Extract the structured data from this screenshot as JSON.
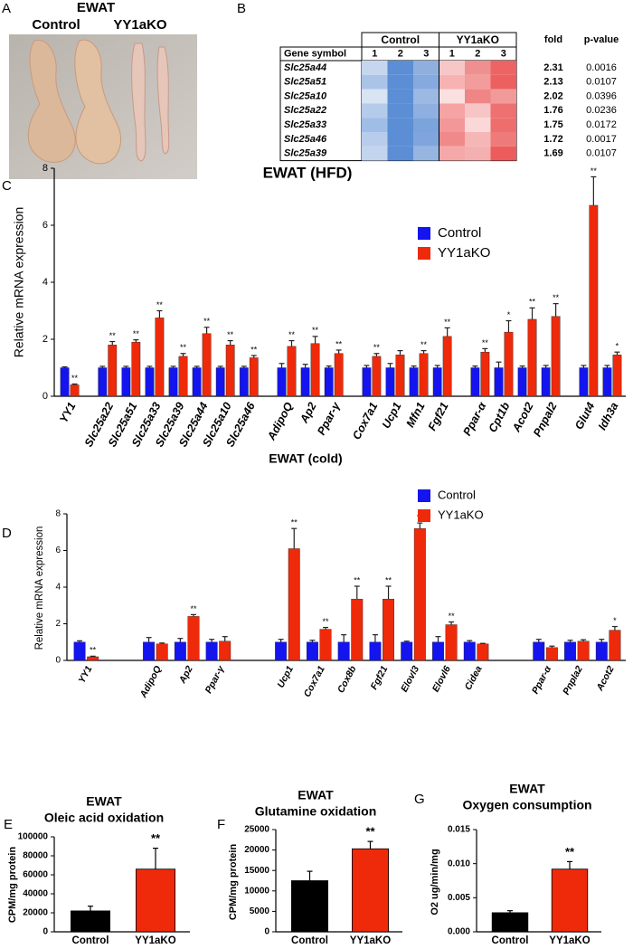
{
  "panels": [
    "A",
    "B",
    "C",
    "D",
    "E",
    "F",
    "G"
  ],
  "photo": {
    "title": "EWAT",
    "labels": [
      "Control",
      "YY1aKO"
    ]
  },
  "table": {
    "groups": [
      "Control",
      "YY1aKO"
    ],
    "columns": [
      "Gene symbol",
      "1",
      "2",
      "3",
      "1",
      "2",
      "3",
      "fold",
      "p-value"
    ],
    "rows": [
      {
        "gene": "Slc25a44",
        "cells": [
          "#c6d6ee",
          "#5b8ed4",
          "#8fb0df",
          "#f7c6c6",
          "#f08f8f",
          "#ee6464"
        ],
        "fold": "2.31",
        "p": "0.0016"
      },
      {
        "gene": "Slc25a51",
        "cells": [
          "#aac4e8",
          "#5b8ed4",
          "#86aade",
          "#f7b2b2",
          "#f29c9c",
          "#ec6060"
        ],
        "fold": "2.13",
        "p": "0.0107"
      },
      {
        "gene": "Slc25a10",
        "cells": [
          "#d8e3f3",
          "#5b8ed4",
          "#9cb9e3",
          "#fbe0e0",
          "#ef8585",
          "#f29a9a"
        ],
        "fold": "2.02",
        "p": "0.0396"
      },
      {
        "gene": "Slc25a22",
        "cells": [
          "#b4cbea",
          "#5b8ed4",
          "#8eafe0",
          "#f5a3a3",
          "#f7c5c5",
          "#ee7070"
        ],
        "fold": "1.76",
        "p": "0.0236"
      },
      {
        "gene": "Slc25a33",
        "cells": [
          "#9fbde6",
          "#5b8ed4",
          "#7ba3dc",
          "#f29898",
          "#fad8d8",
          "#ee6e6e"
        ],
        "fold": "1.75",
        "p": "0.0172"
      },
      {
        "gene": "Slc25a46",
        "cells": [
          "#b8cdec",
          "#5b8ed4",
          "#7fa5dc",
          "#f08a8a",
          "#f5b6b6",
          "#ef7a7a"
        ],
        "fold": "1.72",
        "p": "0.0017"
      },
      {
        "gene": "Slc25a39",
        "cells": [
          "#c3d4ee",
          "#5b8ed4",
          "#97b5e1",
          "#f5a8a8",
          "#f4b0b0",
          "#ec5c5c"
        ],
        "fold": "1.69",
        "p": "0.0107"
      }
    ]
  },
  "chart_data": [
    {
      "type": "bar",
      "title": "EWAT (HFD)",
      "ylabel": "Relative mRNA expression",
      "legend": "upper right",
      "categories": [
        "YY1",
        null,
        "Slc25a22",
        "Slc25a51",
        "Slc25a33",
        "Slc25a39",
        "Slc25a44",
        "Slc25a10",
        "Slc25a46",
        null,
        "AdipoQ",
        "Ap2",
        "Ppar-γ",
        null,
        "Cox7a1",
        "Ucp1",
        "Mfn1",
        "Fgf21",
        null,
        "Ppar-α",
        "Cpt1b",
        "Acot2",
        "Pnpal2",
        null,
        "Glut4",
        "Idh3a"
      ],
      "ylim": [
        0,
        8
      ],
      "yticks": [
        0,
        2,
        4,
        6,
        8
      ],
      "series": [
        {
          "name": "Control",
          "color": "#1414ee",
          "values": [
            1,
            null,
            1,
            1,
            1,
            1,
            1,
            1,
            1,
            null,
            1,
            1,
            1,
            null,
            1,
            1,
            1,
            1,
            null,
            1,
            1,
            1,
            1,
            null,
            1,
            1
          ],
          "errors": [
            0.03,
            null,
            0.05,
            0.05,
            0.05,
            0.05,
            0.05,
            0.05,
            0.05,
            null,
            0.15,
            0.12,
            0.06,
            null,
            0.08,
            0.15,
            0.06,
            0.08,
            null,
            0.06,
            0.2,
            0.06,
            0.08,
            null,
            0.08,
            0.08
          ]
        },
        {
          "name": "YY1aKO",
          "color": "#ee2a0a",
          "values": [
            0.4,
            null,
            1.8,
            1.9,
            2.75,
            1.4,
            2.2,
            1.8,
            1.35,
            null,
            1.75,
            1.85,
            1.5,
            null,
            1.4,
            1.45,
            1.5,
            2.1,
            null,
            1.55,
            2.25,
            2.7,
            2.8,
            null,
            6.7,
            1.45
          ],
          "errors": [
            0.03,
            null,
            0.12,
            0.08,
            0.25,
            0.1,
            0.22,
            0.15,
            0.08,
            null,
            0.2,
            0.25,
            0.12,
            null,
            0.1,
            0.15,
            0.1,
            0.3,
            null,
            0.12,
            0.4,
            0.4,
            0.45,
            null,
            1.0,
            0.1
          ],
          "annotations": [
            "**",
            null,
            "**",
            "**",
            "**",
            "**",
            "**",
            "**",
            "**",
            null,
            "**",
            "**",
            "**",
            null,
            "**",
            null,
            "**",
            "**",
            null,
            "**",
            "*",
            "**",
            "**",
            null,
            "**",
            "*"
          ]
        }
      ]
    },
    {
      "type": "bar",
      "title": "EWAT (cold)",
      "ylabel": "Relative mRNA expression",
      "legend": "upper right",
      "categories": [
        "YY1",
        null,
        "AdipoQ",
        "Ap2",
        "Ppar-γ",
        null,
        "Ucp1",
        "Cox7a1",
        "Cox8b",
        "Fgf21",
        "Elovl3",
        "Elovl6",
        "Cidea",
        null,
        "Ppar-α",
        "Pnpla2",
        "Acot2"
      ],
      "ylim": [
        0,
        8
      ],
      "yticks": [
        0,
        2,
        4,
        6,
        8
      ],
      "series": [
        {
          "name": "Control",
          "color": "#1414ee",
          "values": [
            1,
            null,
            1,
            1,
            1,
            null,
            1,
            1,
            1,
            1,
            1,
            1,
            1,
            null,
            1,
            1,
            1
          ],
          "errors": [
            0.07,
            null,
            0.25,
            0.2,
            0.15,
            null,
            0.15,
            0.1,
            0.4,
            0.4,
            0.05,
            0.3,
            0.08,
            null,
            0.15,
            0.1,
            0.15
          ]
        },
        {
          "name": "YY1aKO",
          "color": "#ee2a0a",
          "values": [
            0.2,
            null,
            0.9,
            2.4,
            1.05,
            null,
            6.1,
            1.7,
            3.35,
            3.35,
            7.2,
            1.95,
            0.9,
            null,
            0.7,
            1.05,
            1.65
          ],
          "errors": [
            0.03,
            null,
            0.05,
            0.1,
            0.25,
            null,
            1.1,
            0.1,
            0.7,
            0.7,
            0.3,
            0.15,
            0.03,
            null,
            0.08,
            0.08,
            0.2
          ],
          "annotations": [
            "**",
            null,
            null,
            "**",
            null,
            null,
            "**",
            "**",
            "**",
            "**",
            "**",
            "**",
            null,
            null,
            null,
            null,
            "*"
          ]
        }
      ]
    },
    {
      "type": "bar",
      "title": "EWAT",
      "subtitle": "Oleic acid oxidation",
      "ylabel": "CPM/mg protein",
      "categories": [
        "Control",
        "YY1aKO"
      ],
      "values": [
        22000,
        66000
      ],
      "errors": [
        5000,
        22000
      ],
      "colors": [
        "#000000",
        "#ee2a0a"
      ],
      "annotations": [
        null,
        "**"
      ],
      "ylim": [
        0,
        100000
      ],
      "yticks": [
        0,
        20000,
        40000,
        60000,
        80000,
        100000
      ]
    },
    {
      "type": "bar",
      "title": "EWAT",
      "subtitle": "Glutamine oxidation",
      "ylabel": "CPM/mg protein",
      "categories": [
        "Control",
        "YY1aKO"
      ],
      "values": [
        12500,
        20300
      ],
      "errors": [
        2300,
        1800
      ],
      "colors": [
        "#000000",
        "#ee2a0a"
      ],
      "annotations": [
        null,
        "**"
      ],
      "ylim": [
        0,
        25000
      ],
      "yticks": [
        0,
        5000,
        10000,
        15000,
        20000,
        25000
      ]
    },
    {
      "type": "bar",
      "title": "EWAT",
      "subtitle": "Oxygen consumption",
      "ylabel": "O2 ug/min/mg",
      "categories": [
        "Control",
        "YY1aKO"
      ],
      "values": [
        0.0028,
        0.0092
      ],
      "errors": [
        0.0003,
        0.0011
      ],
      "colors": [
        "#000000",
        "#ee2a0a"
      ],
      "annotations": [
        null,
        "**"
      ],
      "ylim": [
        0,
        0.015
      ],
      "yticks": [
        {
          "value": 0,
          "label": "0.000"
        },
        {
          "value": 0.005,
          "label": "0.005"
        },
        {
          "value": 0.01,
          "label": "0.010"
        },
        {
          "value": 0.015,
          "label": "0.015"
        }
      ]
    }
  ]
}
